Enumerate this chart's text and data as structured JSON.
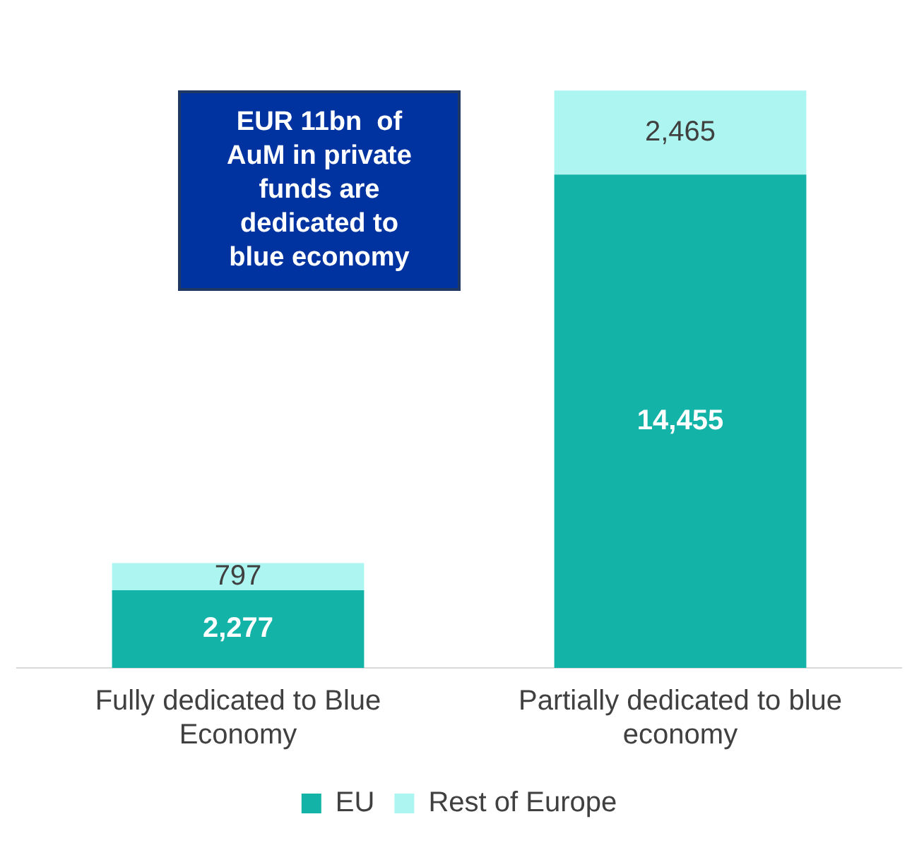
{
  "chart_data": {
    "type": "bar",
    "stacked": true,
    "legend": "bottom",
    "categories": [
      "Fully dedicated to Blue Economy",
      "Partially dedicated to blue economy"
    ],
    "series": [
      {
        "name": "EU",
        "color": "#14b3a8",
        "values": [
          2277,
          14455
        ],
        "value_labels": [
          "2,277",
          "14,455"
        ]
      },
      {
        "name": "Rest of Europe",
        "color": "#adf5f1",
        "values": [
          797,
          2465
        ],
        "value_labels": [
          "797",
          "2,465"
        ]
      }
    ],
    "annotations": [
      "EUR 11bn  of AuM in private funds are dedicated to blue economy"
    ]
  }
}
